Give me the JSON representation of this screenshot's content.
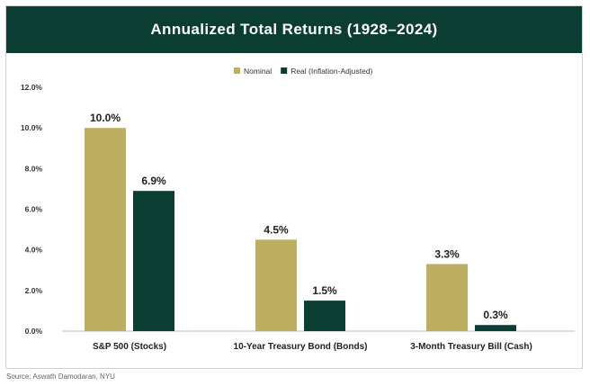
{
  "source_text": "Source: Aswath Damodaran, NYU",
  "chart_data": {
    "type": "bar",
    "title": "Annualized Total Returns (1928–2024)",
    "categories": [
      "S&P 500 (Stocks)",
      "10-Year Treasury Bond (Bonds)",
      "3-Month Treasury Bill (Cash)"
    ],
    "series": [
      {
        "name": "Nominal",
        "values": [
          10.0,
          4.5,
          3.3
        ],
        "labels": [
          "10.0%",
          "4.5%",
          "3.3%"
        ],
        "color": "#bcaf62"
      },
      {
        "name": "Real (Inflation-Adjusted)",
        "values": [
          6.9,
          1.5,
          0.3
        ],
        "labels": [
          "6.9%",
          "1.5%",
          "0.3%"
        ],
        "color": "#0b3d33"
      }
    ],
    "ylim": [
      0,
      12
    ],
    "yticks": [
      "0.0%",
      "2.0%",
      "4.0%",
      "6.0%",
      "8.0%",
      "10.0%",
      "12.0%"
    ],
    "ytick_values": [
      0,
      2,
      4,
      6,
      8,
      10,
      12
    ],
    "grid": false,
    "legend": "top-center"
  }
}
